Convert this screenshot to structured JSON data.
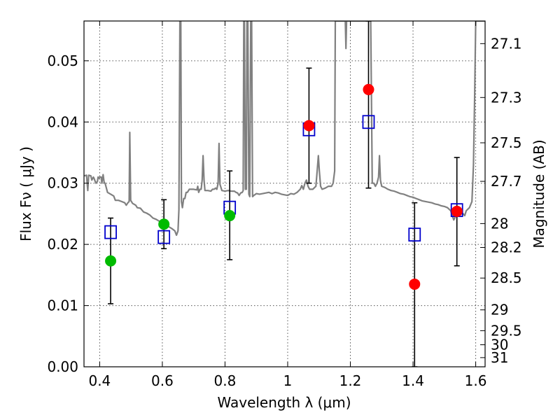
{
  "chart_data": {
    "type": "scatter",
    "xlabel": "Wavelength  λ (μm)",
    "ylabel": "Flux  Fν  ( μJy )",
    "ylabel_right": "Magnitude (AB)",
    "xlim": [
      0.35,
      1.63
    ],
    "ylim": [
      0.0,
      0.0565
    ],
    "grid": true,
    "x_ticks": [
      {
        "value": 0.4,
        "label": "0.4"
      },
      {
        "value": 0.6,
        "label": "0.6"
      },
      {
        "value": 0.8,
        "label": "0.8"
      },
      {
        "value": 1.0,
        "label": "1"
      },
      {
        "value": 1.2,
        "label": "1.2"
      },
      {
        "value": 1.4,
        "label": "1.4"
      },
      {
        "value": 1.6,
        "label": "1.6"
      }
    ],
    "y_ticks": [
      {
        "value": 0.0,
        "label": "0.00"
      },
      {
        "value": 0.01,
        "label": "0.01"
      },
      {
        "value": 0.02,
        "label": "0.02"
      },
      {
        "value": 0.03,
        "label": "0.03"
      },
      {
        "value": 0.04,
        "label": "0.04"
      },
      {
        "value": 0.05,
        "label": "0.05"
      }
    ],
    "right_ticks": [
      {
        "flux": 0.0528,
        "label": "27.1"
      },
      {
        "flux": 0.044,
        "label": "27.3"
      },
      {
        "flux": 0.0366,
        "label": "27.5"
      },
      {
        "flux": 0.0303,
        "label": "27.7"
      },
      {
        "flux": 0.0234,
        "label": "28"
      },
      {
        "flux": 0.0195,
        "label": "28.2"
      },
      {
        "flux": 0.0145,
        "label": "28.5"
      },
      {
        "flux": 0.0093,
        "label": "29"
      },
      {
        "flux": 0.0059,
        "label": "29.5"
      },
      {
        "flux": 0.0036,
        "label": "30"
      },
      {
        "flux": 0.0015,
        "label": "31"
      }
    ],
    "colors": {
      "spectrum": "#808080",
      "model_squares": "#0000cc",
      "green_points": "#00bb00",
      "red_points": "#ff0000",
      "errorbars": "#000000",
      "grid": "#555555"
    },
    "series": [
      {
        "type": "line",
        "role": "spectrum",
        "points": [
          [
            0.35,
            0.0312
          ],
          [
            0.358,
            0.0313
          ],
          [
            0.362,
            0.0288
          ],
          [
            0.365,
            0.0313
          ],
          [
            0.372,
            0.0312
          ],
          [
            0.375,
            0.0305
          ],
          [
            0.38,
            0.031
          ],
          [
            0.382,
            0.0308
          ],
          [
            0.388,
            0.03
          ],
          [
            0.393,
            0.0303
          ],
          [
            0.395,
            0.031
          ],
          [
            0.398,
            0.0308
          ],
          [
            0.4,
            0.031
          ],
          [
            0.405,
            0.031
          ],
          [
            0.407,
            0.03
          ],
          [
            0.411,
            0.0314
          ],
          [
            0.414,
            0.0302
          ],
          [
            0.418,
            0.0299
          ],
          [
            0.42,
            0.0295
          ],
          [
            0.425,
            0.0285
          ],
          [
            0.435,
            0.0282
          ],
          [
            0.445,
            0.0279
          ],
          [
            0.45,
            0.0272
          ],
          [
            0.46,
            0.0272
          ],
          [
            0.47,
            0.027
          ],
          [
            0.48,
            0.0268
          ],
          [
            0.485,
            0.0264
          ],
          [
            0.49,
            0.0268
          ],
          [
            0.494,
            0.027
          ],
          [
            0.496,
            0.0383
          ],
          [
            0.499,
            0.0272
          ],
          [
            0.505,
            0.0267
          ],
          [
            0.515,
            0.0264
          ],
          [
            0.52,
            0.026
          ],
          [
            0.53,
            0.0259
          ],
          [
            0.54,
            0.0253
          ],
          [
            0.55,
            0.0251
          ],
          [
            0.56,
            0.0248
          ],
          [
            0.57,
            0.0243
          ],
          [
            0.58,
            0.0241
          ],
          [
            0.59,
            0.0238
          ],
          [
            0.6,
            0.0235
          ],
          [
            0.61,
            0.0233
          ],
          [
            0.62,
            0.0229
          ],
          [
            0.63,
            0.0226
          ],
          [
            0.64,
            0.0222
          ],
          [
            0.645,
            0.0215
          ],
          [
            0.65,
            0.0222
          ],
          [
            0.653,
            0.0257
          ],
          [
            0.656,
            0.0565
          ],
          [
            0.659,
            0.0565
          ],
          [
            0.661,
            0.027
          ],
          [
            0.664,
            0.026
          ],
          [
            0.668,
            0.0275
          ],
          [
            0.672,
            0.0275
          ],
          [
            0.676,
            0.0285
          ],
          [
            0.68,
            0.0285
          ],
          [
            0.686,
            0.029
          ],
          [
            0.69,
            0.029
          ],
          [
            0.7,
            0.029
          ],
          [
            0.71,
            0.0289
          ],
          [
            0.713,
            0.0295
          ],
          [
            0.716,
            0.0285
          ],
          [
            0.72,
            0.029
          ],
          [
            0.724,
            0.029
          ],
          [
            0.727,
            0.0305
          ],
          [
            0.73,
            0.0345
          ],
          [
            0.733,
            0.0305
          ],
          [
            0.736,
            0.0288
          ],
          [
            0.745,
            0.0288
          ],
          [
            0.755,
            0.0287
          ],
          [
            0.76,
            0.029
          ],
          [
            0.765,
            0.029
          ],
          [
            0.77,
            0.0292
          ],
          [
            0.774,
            0.029
          ],
          [
            0.778,
            0.03
          ],
          [
            0.781,
            0.0365
          ],
          [
            0.784,
            0.0298
          ],
          [
            0.79,
            0.0288
          ],
          [
            0.8,
            0.0287
          ],
          [
            0.81,
            0.0288
          ],
          [
            0.82,
            0.0287
          ],
          [
            0.83,
            0.0287
          ],
          [
            0.835,
            0.0285
          ],
          [
            0.84,
            0.0284
          ],
          [
            0.845,
            0.028
          ],
          [
            0.85,
            0.0284
          ],
          [
            0.855,
            0.0285
          ],
          [
            0.858,
            0.0288
          ],
          [
            0.86,
            0.0565
          ],
          [
            0.862,
            0.0565
          ],
          [
            0.865,
            0.029
          ],
          [
            0.868,
            0.029
          ],
          [
            0.87,
            0.0565
          ],
          [
            0.873,
            0.0565
          ],
          [
            0.876,
            0.0282
          ],
          [
            0.879,
            0.0278
          ],
          [
            0.882,
            0.0565
          ],
          [
            0.885,
            0.0565
          ],
          [
            0.888,
            0.0278
          ],
          [
            0.892,
            0.028
          ],
          [
            0.9,
            0.0283
          ],
          [
            0.91,
            0.0282
          ],
          [
            0.92,
            0.0283
          ],
          [
            0.93,
            0.0284
          ],
          [
            0.94,
            0.0285
          ],
          [
            0.95,
            0.0283
          ],
          [
            0.96,
            0.0285
          ],
          [
            0.97,
            0.0284
          ],
          [
            0.98,
            0.0282
          ],
          [
            0.99,
            0.0281
          ],
          [
            1.0,
            0.028
          ],
          [
            1.01,
            0.0283
          ],
          [
            1.02,
            0.0282
          ],
          [
            1.03,
            0.0285
          ],
          [
            1.04,
            0.029
          ],
          [
            1.045,
            0.0296
          ],
          [
            1.05,
            0.029
          ],
          [
            1.055,
            0.03
          ],
          [
            1.06,
            0.0305
          ],
          [
            1.065,
            0.0295
          ],
          [
            1.07,
            0.029
          ],
          [
            1.08,
            0.029
          ],
          [
            1.09,
            0.0295
          ],
          [
            1.094,
            0.032
          ],
          [
            1.098,
            0.0345
          ],
          [
            1.101,
            0.032
          ],
          [
            1.105,
            0.0295
          ],
          [
            1.11,
            0.029
          ],
          [
            1.12,
            0.0292
          ],
          [
            1.13,
            0.0295
          ],
          [
            1.14,
            0.0295
          ],
          [
            1.145,
            0.03
          ],
          [
            1.15,
            0.032
          ],
          [
            1.152,
            0.0565
          ],
          [
            1.155,
            0.0565
          ],
          [
            1.16,
            0.0565
          ],
          [
            1.17,
            0.0565
          ],
          [
            1.18,
            0.0565
          ],
          [
            1.184,
            0.0565
          ],
          [
            1.186,
            0.052
          ],
          [
            1.188,
            0.0565
          ],
          [
            1.19,
            0.0565
          ],
          [
            1.2,
            0.0565
          ],
          [
            1.21,
            0.0565
          ],
          [
            1.22,
            0.0565
          ],
          [
            1.23,
            0.0565
          ],
          [
            1.24,
            0.0565
          ],
          [
            1.25,
            0.0565
          ],
          [
            1.26,
            0.0565
          ],
          [
            1.265,
            0.0565
          ],
          [
            1.27,
            0.03
          ],
          [
            1.275,
            0.03
          ],
          [
            1.28,
            0.0295
          ],
          [
            1.285,
            0.03
          ],
          [
            1.29,
            0.031
          ],
          [
            1.293,
            0.0345
          ],
          [
            1.296,
            0.0305
          ],
          [
            1.3,
            0.0295
          ],
          [
            1.31,
            0.0293
          ],
          [
            1.32,
            0.029
          ],
          [
            1.33,
            0.0288
          ],
          [
            1.34,
            0.0287
          ],
          [
            1.35,
            0.0285
          ],
          [
            1.36,
            0.0283
          ],
          [
            1.37,
            0.0282
          ],
          [
            1.38,
            0.028
          ],
          [
            1.39,
            0.0278
          ],
          [
            1.4,
            0.0277
          ],
          [
            1.41,
            0.0275
          ],
          [
            1.42,
            0.0273
          ],
          [
            1.43,
            0.0271
          ],
          [
            1.44,
            0.027
          ],
          [
            1.45,
            0.0269
          ],
          [
            1.46,
            0.0268
          ],
          [
            1.47,
            0.0266
          ],
          [
            1.48,
            0.0265
          ],
          [
            1.49,
            0.0263
          ],
          [
            1.5,
            0.0262
          ],
          [
            1.51,
            0.026
          ],
          [
            1.52,
            0.0255
          ],
          [
            1.525,
            0.0248
          ],
          [
            1.53,
            0.024
          ],
          [
            1.535,
            0.0245
          ],
          [
            1.54,
            0.0255
          ],
          [
            1.55,
            0.0255
          ],
          [
            1.555,
            0.025
          ],
          [
            1.56,
            0.025
          ],
          [
            1.565,
            0.0247
          ],
          [
            1.57,
            0.0255
          ],
          [
            1.58,
            0.026
          ],
          [
            1.588,
            0.027
          ],
          [
            1.593,
            0.033
          ],
          [
            1.597,
            0.045
          ],
          [
            1.6,
            0.0565
          ],
          [
            1.62,
            0.0565
          ],
          [
            1.63,
            0.0565
          ]
        ]
      },
      {
        "type": "scatter",
        "role": "model_squares",
        "points": [
          [
            0.435,
            0.022
          ],
          [
            0.605,
            0.0212
          ],
          [
            0.815,
            0.026
          ],
          [
            1.068,
            0.0388
          ],
          [
            1.258,
            0.04
          ],
          [
            1.405,
            0.0216
          ],
          [
            1.54,
            0.0256
          ]
        ]
      },
      {
        "type": "scatter",
        "role": "green_points",
        "points": [
          {
            "x": 0.435,
            "y": 0.0173,
            "err_lo": 0.0103,
            "err_hi": 0.0243
          },
          {
            "x": 0.605,
            "y": 0.0233,
            "err_lo": 0.0193,
            "err_hi": 0.0273
          },
          {
            "x": 0.815,
            "y": 0.0247,
            "err_lo": 0.0175,
            "err_hi": 0.032
          }
        ]
      },
      {
        "type": "scatter",
        "role": "red_points",
        "points": [
          {
            "x": 1.068,
            "y": 0.0394,
            "err_lo": 0.03,
            "err_hi": 0.0488
          },
          {
            "x": 1.258,
            "y": 0.0453,
            "err_lo": 0.0292,
            "err_hi": 0.0565
          },
          {
            "x": 1.405,
            "y": 0.0135,
            "err_lo": 0.0,
            "err_hi": 0.0268
          },
          {
            "x": 1.54,
            "y": 0.0254,
            "err_lo": 0.0165,
            "err_hi": 0.0342
          }
        ]
      }
    ]
  }
}
